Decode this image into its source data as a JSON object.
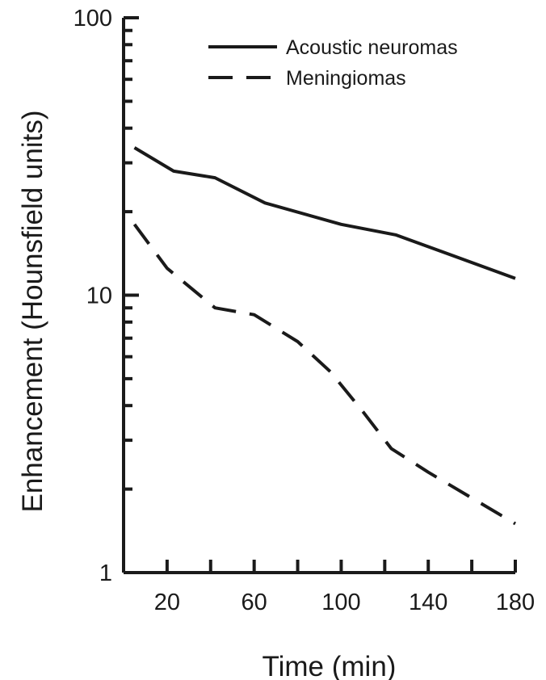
{
  "chart_data": {
    "type": "line",
    "title": "",
    "xlabel": "Time (min)",
    "ylabel": "Enhancement (Hounsfield units)",
    "xlim": [
      0,
      180
    ],
    "ylim": [
      1,
      100
    ],
    "yscale": "log",
    "x_tick_labels": [
      20,
      60,
      100,
      140,
      180
    ],
    "y_tick_labels": [
      1,
      10,
      100
    ],
    "grid": false,
    "legend_position": "top-right",
    "series": [
      {
        "name": "Acoustic neuromas",
        "line_style": "solid",
        "x": [
          5,
          23,
          42,
          65,
          100,
          125,
          150,
          180
        ],
        "y": [
          34,
          28,
          26.5,
          21.5,
          18,
          16.5,
          14,
          11.5
        ]
      },
      {
        "name": "Meningiomas",
        "line_style": "dashed",
        "x": [
          5,
          20,
          42,
          60,
          80,
          95,
          110,
          123,
          140,
          180
        ],
        "y": [
          18,
          12.5,
          9,
          8.5,
          6.8,
          5.3,
          3.8,
          2.8,
          2.3,
          1.5
        ]
      }
    ]
  }
}
